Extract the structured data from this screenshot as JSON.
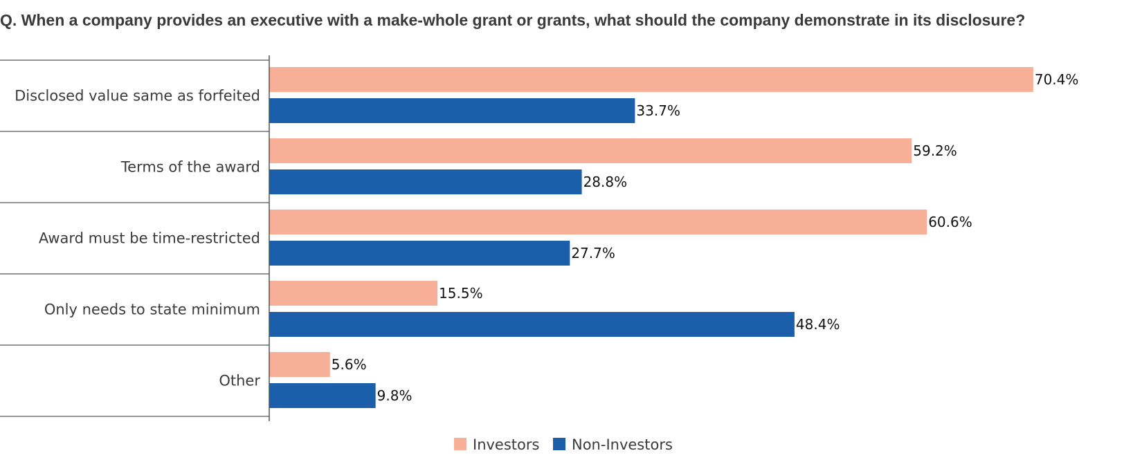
{
  "chart_data": {
    "type": "bar",
    "orientation": "horizontal",
    "title": "Q. When a company provides an executive with a make-whole grant or grants, what should the company demonstrate in its disclosure?",
    "categories": [
      "Disclosed value same as forfeited",
      "Terms of the award",
      "Award must be time-restricted",
      "Only needs to state minimum",
      "Other"
    ],
    "series": [
      {
        "name": "Investors",
        "color": "#F7AF97",
        "values": [
          70.4,
          59.2,
          60.6,
          15.5,
          5.6
        ],
        "labels": [
          "70.4%",
          "59.2%",
          "60.6%",
          "15.5%",
          "5.6%"
        ]
      },
      {
        "name": "Non-Investors",
        "color": "#1B5FAA",
        "values": [
          33.7,
          28.8,
          27.7,
          48.4,
          9.8
        ],
        "labels": [
          "33.7%",
          "28.8%",
          "27.7%",
          "48.4%",
          "9.8%"
        ]
      }
    ],
    "xlim": [
      0,
      100
    ],
    "value_unit": "%",
    "grid": false,
    "legend": "bottom-center"
  }
}
